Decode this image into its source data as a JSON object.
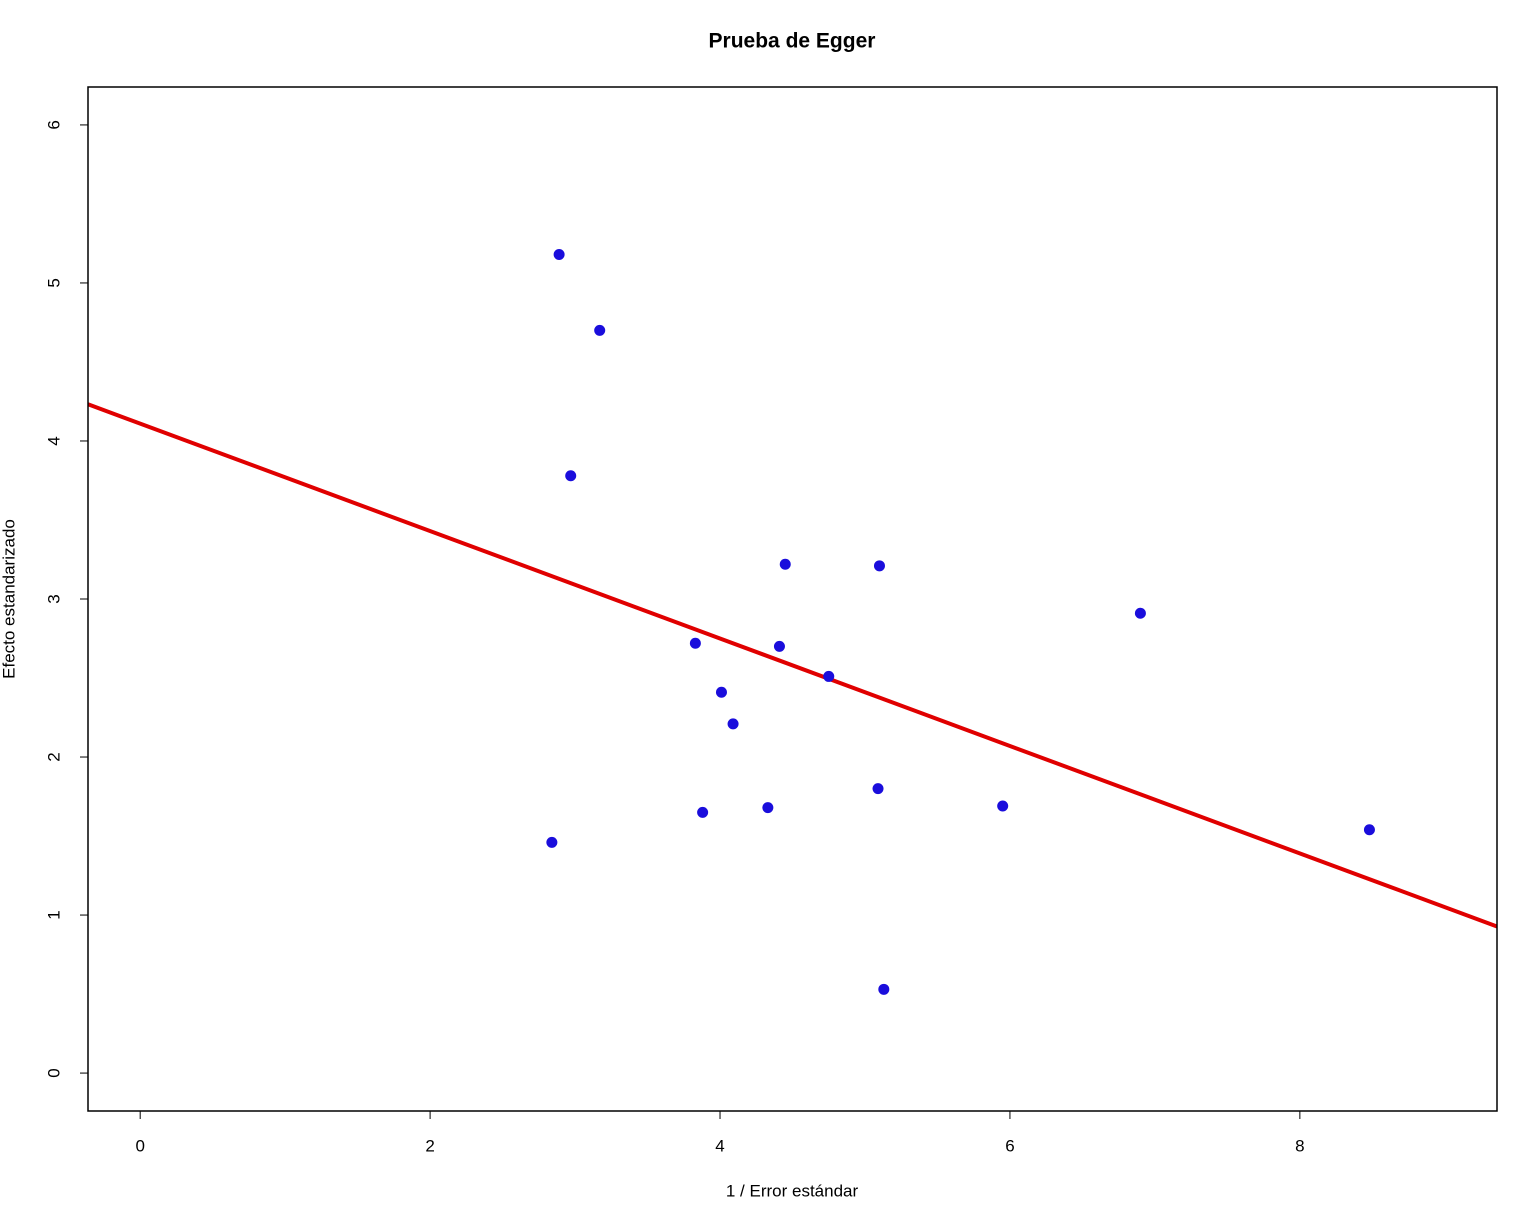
{
  "chart_data": {
    "type": "scatter",
    "title": "Prueba de Egger",
    "x_label": "1 / Error estándar",
    "y_label": "Efecto estandarizado",
    "x": [
      2.89,
      3.17,
      2.97,
      4.45,
      5.1,
      6.9,
      3.83,
      4.41,
      4.75,
      4.01,
      4.09,
      5.09,
      5.95,
      4.33,
      3.88,
      2.84,
      8.48,
      5.13
    ],
    "y": [
      5.18,
      4.7,
      3.78,
      3.22,
      3.21,
      2.91,
      2.72,
      2.7,
      2.51,
      2.41,
      2.21,
      1.8,
      1.69,
      1.68,
      1.65,
      1.46,
      1.54,
      0.53
    ],
    "color": "#1a0ddc",
    "regression": {
      "intercept": 4.11,
      "slope": -0.34,
      "color": "#e00000"
    },
    "xlim": [
      -0.36,
      9.36
    ],
    "ylim": [
      -0.24,
      6.24
    ],
    "xticks": [
      0,
      2,
      4,
      6,
      8
    ],
    "yticks": [
      0,
      1,
      2,
      3,
      4,
      5,
      6
    ],
    "grid": false
  }
}
